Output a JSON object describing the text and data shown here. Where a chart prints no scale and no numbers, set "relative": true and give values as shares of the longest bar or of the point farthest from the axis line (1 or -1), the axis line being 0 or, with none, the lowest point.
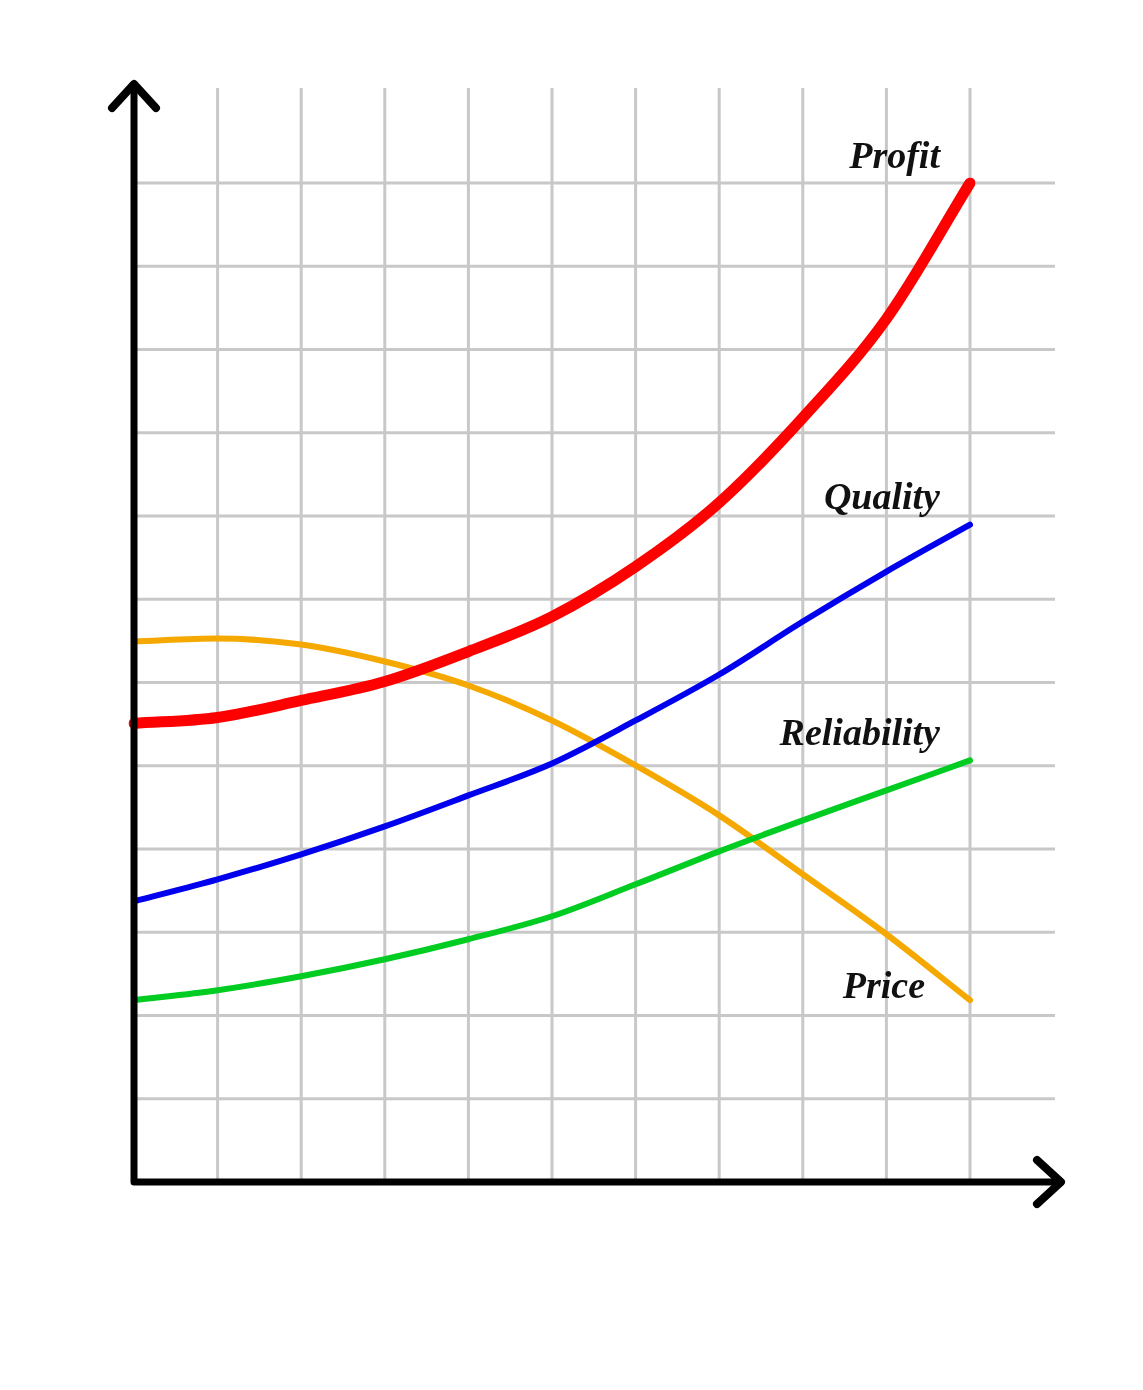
{
  "chart_data": {
    "type": "line",
    "relative": true,
    "grid": true,
    "marker": "none",
    "line_style": "solid",
    "legend": false,
    "tick_labels": false,
    "categories": [
      null,
      null,
      null,
      null,
      null,
      null,
      null,
      null,
      null,
      null,
      null
    ],
    "series": [
      {
        "name": "Profit",
        "color": "#ff0000",
        "values": [
          0.459,
          0.465,
          0.482,
          0.501,
          0.531,
          0.566,
          0.616,
          0.68,
          0.765,
          0.864,
          1
        ]
      },
      {
        "name": "Quality",
        "color": "#0000ee",
        "values": [
          0.281,
          0.303,
          0.328,
          0.356,
          0.387,
          0.419,
          0.462,
          0.508,
          0.561,
          0.611,
          0.658
        ]
      },
      {
        "name": "Reliability",
        "color": "#00cc22",
        "values": [
          0.182,
          0.192,
          0.206,
          0.223,
          0.243,
          0.266,
          0.298,
          0.331,
          0.362,
          0.392,
          0.422
        ]
      },
      {
        "name": "Price",
        "color": "#f5a800",
        "values": [
          0.541,
          0.544,
          0.538,
          0.521,
          0.497,
          0.462,
          0.417,
          0.367,
          0.308,
          0.248,
          0.182
        ]
      }
    ]
  }
}
